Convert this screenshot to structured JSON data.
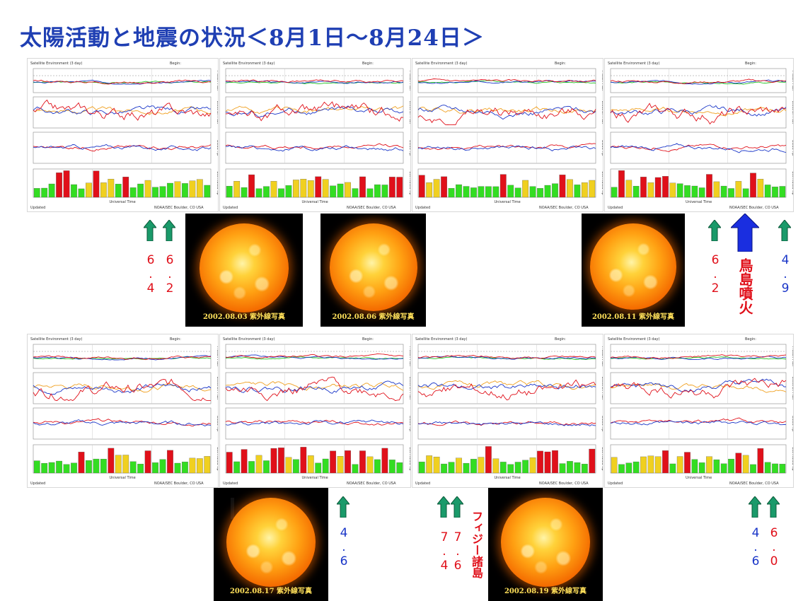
{
  "title": "太陽活動と地震の状況＜8月1日～8月24日＞",
  "panel_labels": {
    "heading": "Satellite Environment (3 day)",
    "begin": "Begin:",
    "footer_left": "Updated",
    "footer_mid": "Universal Time",
    "footer_right": "NOAA/SEC Boulder, CO USA",
    "side_labels": [
      "Proton Flux",
      "Electron Flux",
      "GOES Hp",
      "Estimated Kp"
    ]
  },
  "colors": {
    "title": "#1f3fb3",
    "red": "#e0101a",
    "blue": "#1a36c8",
    "arrow_green": "#1a9a6a",
    "caption": "#ffe05a"
  },
  "sun_captions": [
    "2002.08.03 紫外線写真",
    "2002.08.06 紫外線写真",
    "2002.08.11 紫外線写真",
    "2002.08.17 紫外線写真",
    "2002.08.19 紫外線写真"
  ],
  "quakes": [
    {
      "mag": "6.4",
      "color": "red"
    },
    {
      "mag": "6.2",
      "color": "red"
    },
    {
      "mag": "6.2",
      "color": "red"
    },
    {
      "mag": "4.9",
      "color": "blue"
    },
    {
      "mag": "4.6",
      "color": "blue"
    },
    {
      "mag": "7.4",
      "color": "red"
    },
    {
      "mag": "7.6",
      "color": "red"
    },
    {
      "mag": "4.6",
      "color": "blue"
    },
    {
      "mag": "6.0",
      "color": "red"
    }
  ],
  "volcano_label": "鳥島噴火",
  "region_label": "フィジー諸島"
}
